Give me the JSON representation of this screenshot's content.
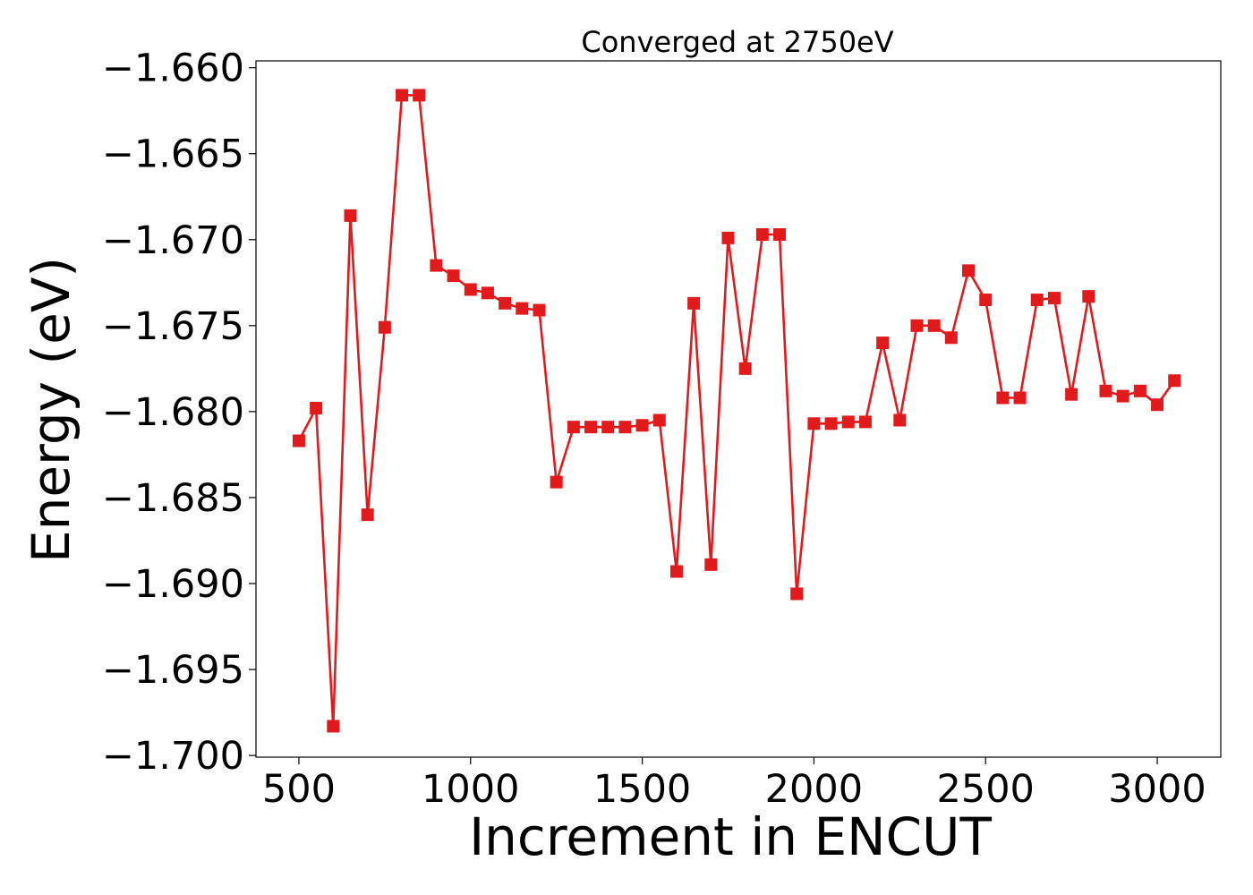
{
  "chart_data": {
    "type": "line",
    "title": "Converged at 2750eV",
    "xlabel": "Increment in ENCUT",
    "ylabel": "Energy (eV)",
    "xlim": [
      375,
      3185
    ],
    "ylim": [
      -1.7001,
      -1.6596
    ],
    "x_ticks": [
      500,
      1000,
      1500,
      2000,
      2500,
      3000
    ],
    "x_tick_labels": [
      "500",
      "1000",
      "1500",
      "2000",
      "2500",
      "3000"
    ],
    "y_ticks": [
      -1.66,
      -1.665,
      -1.67,
      -1.675,
      -1.68,
      -1.685,
      -1.69,
      -1.695,
      -1.7
    ],
    "y_tick_labels": [
      "−1.660",
      "−1.665",
      "−1.670",
      "−1.675",
      "−1.680",
      "−1.685",
      "−1.690",
      "−1.695",
      "−1.700"
    ],
    "grid": false,
    "color": "#e31a1c",
    "marker": "square",
    "series": [
      {
        "x": [
          500,
          550,
          600,
          650,
          700,
          750,
          800,
          850,
          900,
          950,
          1000,
          1050,
          1100,
          1150,
          1200,
          1250,
          1300,
          1350,
          1400,
          1450,
          1500,
          1550,
          1600,
          1650,
          1700,
          1750,
          1800,
          1850,
          1900,
          1950,
          2000,
          2050,
          2100,
          2150,
          2200,
          2250,
          2300,
          2350,
          2400,
          2450,
          2500,
          2550,
          2600,
          2650,
          2700,
          2750,
          2800,
          2850,
          2900,
          2950,
          3000,
          3050
        ],
        "y": [
          -1.6817,
          -1.6798,
          -1.6983,
          -1.6686,
          -1.686,
          -1.6751,
          -1.6616,
          -1.6616,
          -1.6715,
          -1.6721,
          -1.6729,
          -1.6731,
          -1.6737,
          -1.674,
          -1.6741,
          -1.6841,
          -1.6809,
          -1.6809,
          -1.6809,
          -1.6809,
          -1.6808,
          -1.6805,
          -1.6893,
          -1.6737,
          -1.6889,
          -1.6699,
          -1.6775,
          -1.6697,
          -1.6697,
          -1.6906,
          -1.6807,
          -1.6807,
          -1.6806,
          -1.6806,
          -1.676,
          -1.6805,
          -1.675,
          -1.675,
          -1.6757,
          -1.6718,
          -1.6735,
          -1.6792,
          -1.6792,
          -1.6735,
          -1.6734,
          -1.679,
          -1.6733,
          -1.6788,
          -1.6791,
          -1.6788,
          -1.6796,
          -1.6782
        ]
      }
    ]
  }
}
